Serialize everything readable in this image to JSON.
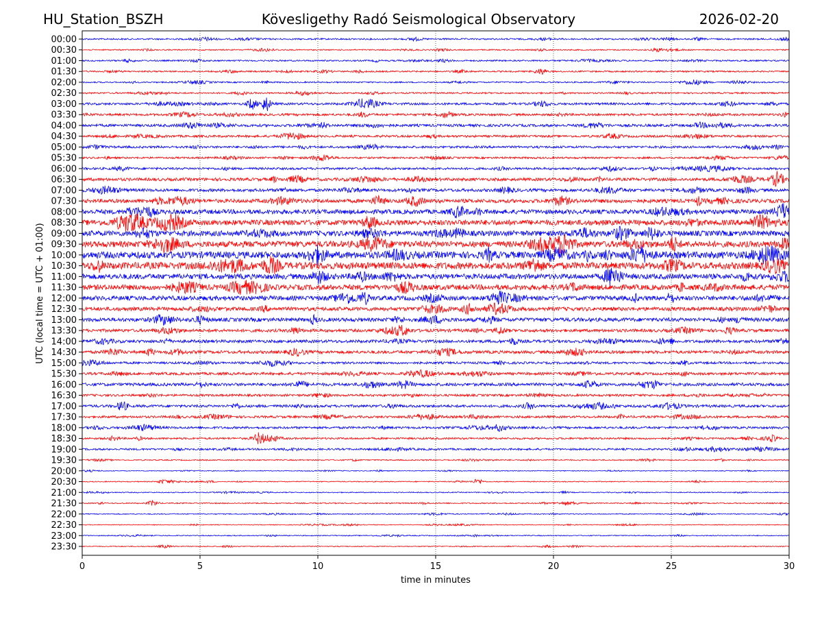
{
  "header": {
    "station": "HU_Station_BSZH",
    "observatory": "Kövesligethy Radó Seismological Observatory",
    "date": "2026-02-20"
  },
  "chart_data": {
    "type": "line",
    "title": "Kövesligethy Radó Seismological Observatory",
    "xlabel": "time in minutes",
    "ylabel": "UTC (local time = UTC + 01:00)",
    "xlim": [
      0,
      30
    ],
    "xticks": [
      0,
      5,
      10,
      15,
      20,
      25,
      30
    ],
    "grid": "vertical dotted at x ticks",
    "colors": [
      "#0000ff",
      "#ff0000"
    ],
    "rows": [
      "00:00",
      "00:30",
      "01:00",
      "01:30",
      "02:00",
      "02:30",
      "03:00",
      "03:30",
      "04:00",
      "04:30",
      "05:00",
      "05:30",
      "06:00",
      "06:30",
      "07:00",
      "07:30",
      "08:00",
      "08:30",
      "09:00",
      "09:30",
      "10:00",
      "10:30",
      "11:00",
      "11:30",
      "12:00",
      "12:30",
      "13:00",
      "13:30",
      "14:00",
      "14:30",
      "15:00",
      "15:30",
      "16:00",
      "16:30",
      "17:00",
      "17:30",
      "18:00",
      "18:30",
      "19:00",
      "19:30",
      "20:00",
      "20:30",
      "21:00",
      "21:30",
      "22:00",
      "22:30",
      "23:00",
      "23:30"
    ],
    "relative_amplitude": [
      2,
      1.5,
      2,
      2,
      1.8,
      2,
      3,
      3,
      3.5,
      3,
      3,
      2.5,
      3,
      4,
      4,
      5,
      6,
      7,
      7,
      8,
      9,
      9,
      7,
      7,
      6,
      5,
      5,
      4,
      4,
      4,
      3,
      3.5,
      4,
      3,
      3.5,
      3,
      3,
      2.5,
      2.5,
      1.5,
      1,
      1.2,
      1.2,
      1.5,
      1.2,
      1,
      1.2,
      1.2
    ],
    "events": [
      {
        "row": "03:00",
        "minute": 7.8,
        "relative_amplitude": 10
      },
      {
        "row": "03:00",
        "minute": 7.2,
        "relative_amplitude": 7
      },
      {
        "row": "06:30",
        "minute": 29.5,
        "relative_amplitude": 8
      },
      {
        "row": "17:00",
        "minute": 1.7,
        "relative_amplitude": 7
      },
      {
        "row": "18:30",
        "minute": 7.5,
        "relative_amplitude": 6
      },
      {
        "row": "20:30",
        "minute": 16.8,
        "relative_amplitude": 4
      },
      {
        "row": "21:30",
        "minute": 3.0,
        "relative_amplitude": 4
      }
    ]
  }
}
